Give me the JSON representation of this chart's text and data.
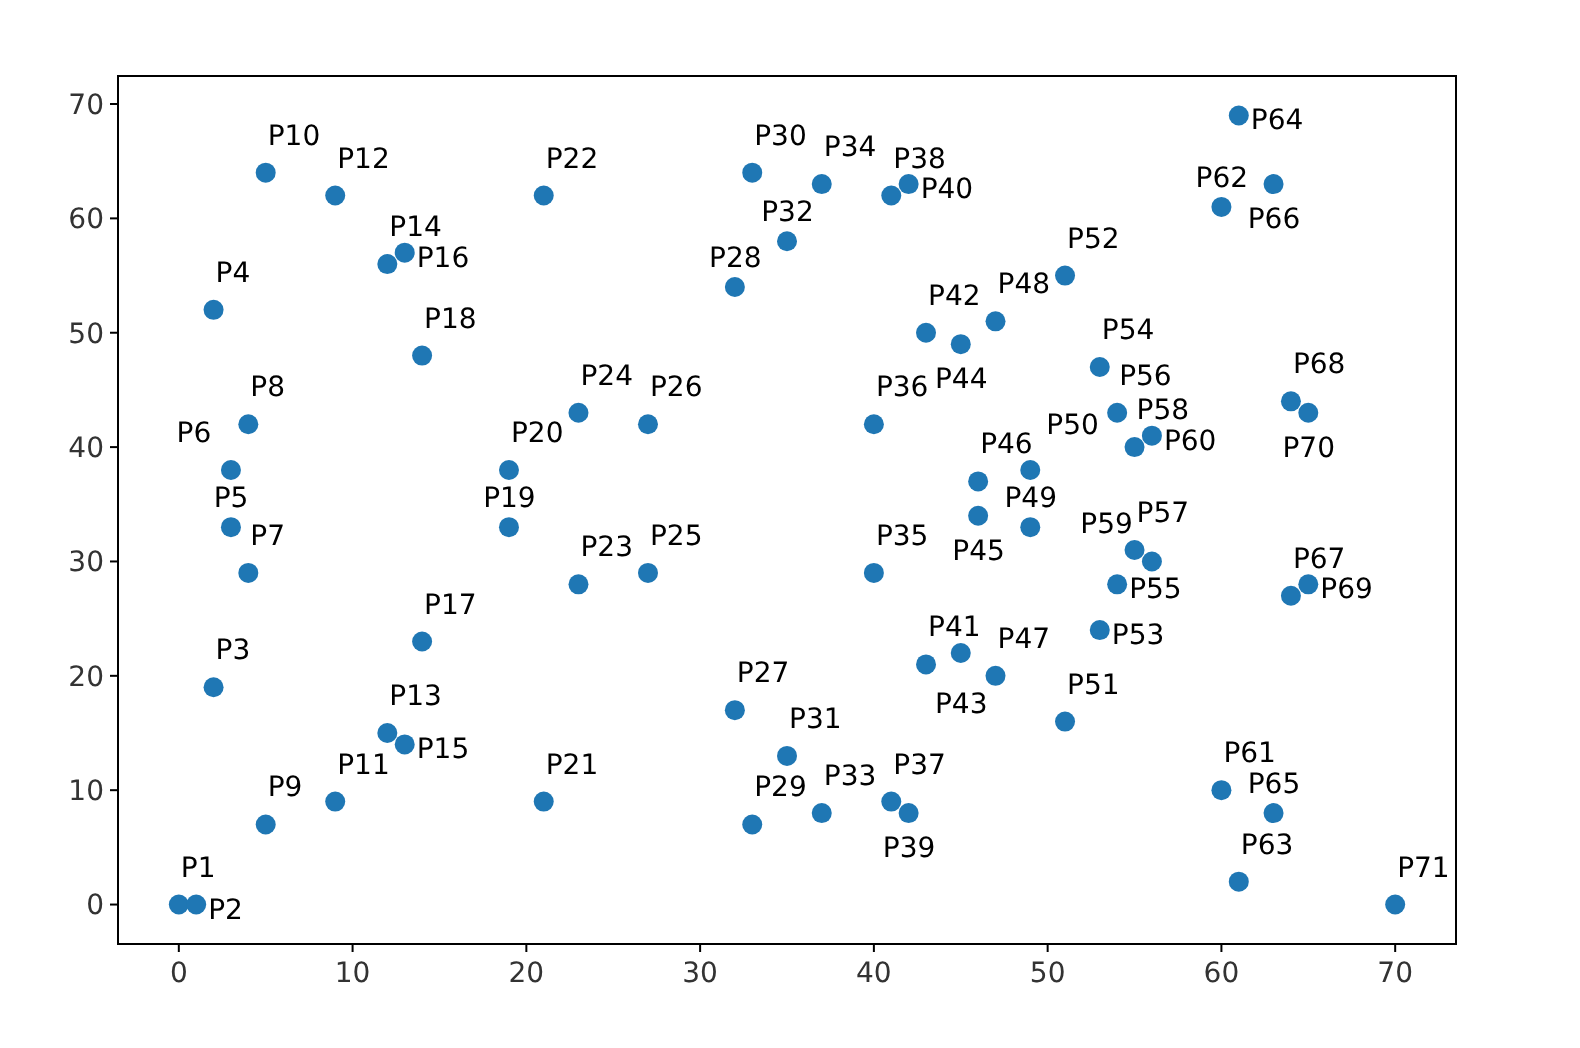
{
  "chart_data": {
    "type": "scatter",
    "color": "#1f77b4",
    "marker": "circle",
    "x": [
      0,
      1,
      2,
      2,
      3,
      3,
      4,
      4,
      5,
      5,
      9,
      9,
      12,
      12,
      13,
      13,
      14,
      14,
      19,
      19,
      21,
      21,
      23,
      23,
      27,
      27,
      32,
      32,
      33,
      33,
      35,
      35,
      37,
      37,
      40,
      40,
      41,
      41,
      42,
      42,
      43,
      43,
      45,
      45,
      46,
      46,
      47,
      47,
      49,
      49,
      51,
      51,
      53,
      53,
      54,
      54,
      55,
      55,
      56,
      56,
      60,
      60,
      61,
      61,
      63,
      63,
      64,
      64,
      65,
      65,
      70
    ],
    "values": [
      0,
      0,
      19,
      52,
      33,
      38,
      29,
      42,
      7,
      64,
      9,
      62,
      15,
      56,
      14,
      57,
      23,
      48,
      33,
      38,
      9,
      62,
      28,
      43,
      29,
      42,
      17,
      54,
      7,
      64,
      13,
      58,
      8,
      63,
      29,
      42,
      9,
      62,
      8,
      63,
      21,
      50,
      22,
      49,
      34,
      37,
      20,
      51,
      33,
      38,
      16,
      55,
      24,
      47,
      28,
      43,
      31,
      40,
      30,
      41,
      10,
      61,
      2,
      69,
      8,
      63,
      27,
      44,
      28,
      43,
      0
    ],
    "annotations": [
      {
        "text": "P1",
        "x": 0,
        "y": 0
      },
      {
        "text": "P2",
        "x": 1,
        "y": 0
      },
      {
        "text": "P3",
        "x": 2,
        "y": 19
      },
      {
        "text": "P4",
        "x": 2,
        "y": 52
      },
      {
        "text": "P5",
        "x": 3,
        "y": 33
      },
      {
        "text": "P6",
        "x": 3,
        "y": 38
      },
      {
        "text": "P7",
        "x": 4,
        "y": 29
      },
      {
        "text": "P8",
        "x": 4,
        "y": 42
      },
      {
        "text": "P9",
        "x": 5,
        "y": 7
      },
      {
        "text": "P10",
        "x": 5,
        "y": 64
      },
      {
        "text": "P11",
        "x": 9,
        "y": 9
      },
      {
        "text": "P12",
        "x": 9,
        "y": 62
      },
      {
        "text": "P13",
        "x": 12,
        "y": 15
      },
      {
        "text": "P14",
        "x": 12,
        "y": 56
      },
      {
        "text": "P15",
        "x": 13,
        "y": 14
      },
      {
        "text": "P16",
        "x": 13,
        "y": 57
      },
      {
        "text": "P17",
        "x": 14,
        "y": 23
      },
      {
        "text": "P18",
        "x": 14,
        "y": 48
      },
      {
        "text": "P19",
        "x": 19,
        "y": 33
      },
      {
        "text": "P20",
        "x": 19,
        "y": 38
      },
      {
        "text": "P21",
        "x": 21,
        "y": 9
      },
      {
        "text": "P22",
        "x": 21,
        "y": 62
      },
      {
        "text": "P23",
        "x": 23,
        "y": 28
      },
      {
        "text": "P24",
        "x": 23,
        "y": 43
      },
      {
        "text": "P25",
        "x": 27,
        "y": 29
      },
      {
        "text": "P26",
        "x": 27,
        "y": 42
      },
      {
        "text": "P27",
        "x": 32,
        "y": 17
      },
      {
        "text": "P28",
        "x": 32,
        "y": 54
      },
      {
        "text": "P29",
        "x": 33,
        "y": 7
      },
      {
        "text": "P30",
        "x": 33,
        "y": 64
      },
      {
        "text": "P31",
        "x": 35,
        "y": 13
      },
      {
        "text": "P32",
        "x": 35,
        "y": 58
      },
      {
        "text": "P33",
        "x": 37,
        "y": 8
      },
      {
        "text": "P34",
        "x": 37,
        "y": 63
      },
      {
        "text": "P35",
        "x": 40,
        "y": 29
      },
      {
        "text": "P36",
        "x": 40,
        "y": 42
      },
      {
        "text": "P37",
        "x": 41,
        "y": 9
      },
      {
        "text": "P38",
        "x": 41,
        "y": 62
      },
      {
        "text": "P39",
        "x": 42,
        "y": 8
      },
      {
        "text": "P40",
        "x": 42,
        "y": 63
      },
      {
        "text": "P41",
        "x": 43,
        "y": 21
      },
      {
        "text": "P42",
        "x": 43,
        "y": 50
      },
      {
        "text": "P43",
        "x": 45,
        "y": 22
      },
      {
        "text": "P44",
        "x": 45,
        "y": 49
      },
      {
        "text": "P45",
        "x": 46,
        "y": 34
      },
      {
        "text": "P46",
        "x": 46,
        "y": 37
      },
      {
        "text": "P47",
        "x": 47,
        "y": 20
      },
      {
        "text": "P48",
        "x": 47,
        "y": 51
      },
      {
        "text": "P49",
        "x": 49,
        "y": 33
      },
      {
        "text": "P50",
        "x": 49,
        "y": 38
      },
      {
        "text": "P51",
        "x": 51,
        "y": 16
      },
      {
        "text": "P52",
        "x": 51,
        "y": 55
      },
      {
        "text": "P53",
        "x": 53,
        "y": 24
      },
      {
        "text": "P54",
        "x": 53,
        "y": 47
      },
      {
        "text": "P55",
        "x": 54,
        "y": 28
      },
      {
        "text": "P56",
        "x": 54,
        "y": 43
      },
      {
        "text": "P57",
        "x": 55,
        "y": 31
      },
      {
        "text": "P58",
        "x": 55,
        "y": 40
      },
      {
        "text": "P59",
        "x": 56,
        "y": 30
      },
      {
        "text": "P60",
        "x": 56,
        "y": 41
      },
      {
        "text": "P61",
        "x": 60,
        "y": 10
      },
      {
        "text": "P62",
        "x": 60,
        "y": 61
      },
      {
        "text": "P63",
        "x": 61,
        "y": 2
      },
      {
        "text": "P64",
        "x": 61,
        "y": 69
      },
      {
        "text": "P65",
        "x": 63,
        "y": 8
      },
      {
        "text": "P66",
        "x": 63,
        "y": 63
      },
      {
        "text": "P67",
        "x": 64,
        "y": 27
      },
      {
        "text": "P68",
        "x": 64,
        "y": 44
      },
      {
        "text": "P69",
        "x": 65,
        "y": 28
      },
      {
        "text": "P70",
        "x": 65,
        "y": 43
      },
      {
        "text": "P71",
        "x": 70,
        "y": 0
      }
    ],
    "xlim": [
      -3.5,
      73.5
    ],
    "ylim": [
      -3.45,
      72.45
    ],
    "xticks": [
      0,
      10,
      20,
      30,
      40,
      50,
      60,
      70
    ],
    "yticks": [
      0,
      10,
      20,
      30,
      40,
      50,
      60,
      70
    ],
    "grid": false
  }
}
